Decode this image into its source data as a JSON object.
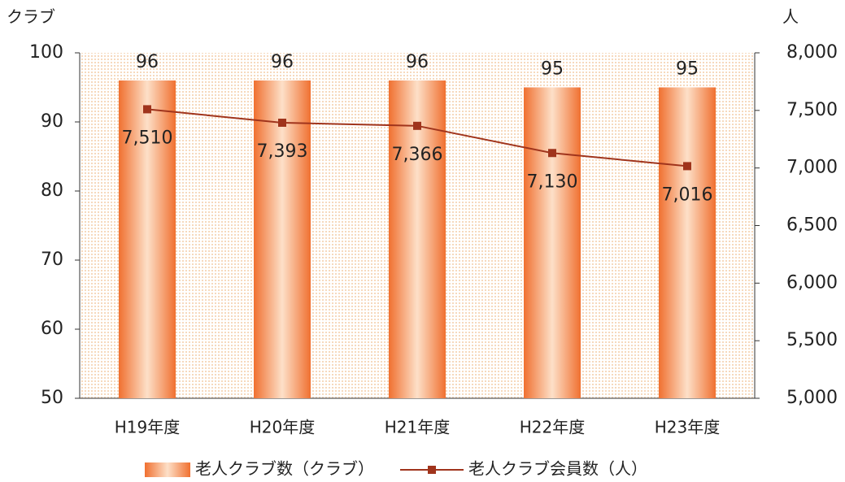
{
  "chart_data": {
    "type": "bar",
    "y_label": "クラブ",
    "y2_label": "人",
    "categories": [
      "H19年度",
      "H20年度",
      "H21年度",
      "H22年度",
      "H23年度"
    ],
    "series": [
      {
        "name": "老人クラブ数（クラブ）",
        "type": "bar",
        "color": "#f07030",
        "values": [
          96,
          96,
          96,
          95,
          95
        ]
      },
      {
        "name": "老人クラブ会員数（人）",
        "type": "line",
        "axis": "y2",
        "color": "#a0341c",
        "values": [
          7510,
          7393,
          7366,
          7130,
          7016
        ],
        "value_labels": [
          "7,510",
          "7,393",
          "7,366",
          "7,130",
          "7,016"
        ]
      }
    ],
    "ylim": [
      50,
      100
    ],
    "yticks": [
      50,
      60,
      70,
      80,
      90,
      100
    ],
    "y2lim": [
      5000,
      8000
    ],
    "y2ticks": [
      {
        "value": 5000,
        "label": "5,000"
      },
      {
        "value": 5500,
        "label": "5,500"
      },
      {
        "value": 6000,
        "label": "6,000"
      },
      {
        "value": 6500,
        "label": "6,500"
      },
      {
        "value": 7000,
        "label": "7,000"
      },
      {
        "value": 7500,
        "label": "7,500"
      },
      {
        "value": 8000,
        "label": "8,000"
      }
    ]
  }
}
